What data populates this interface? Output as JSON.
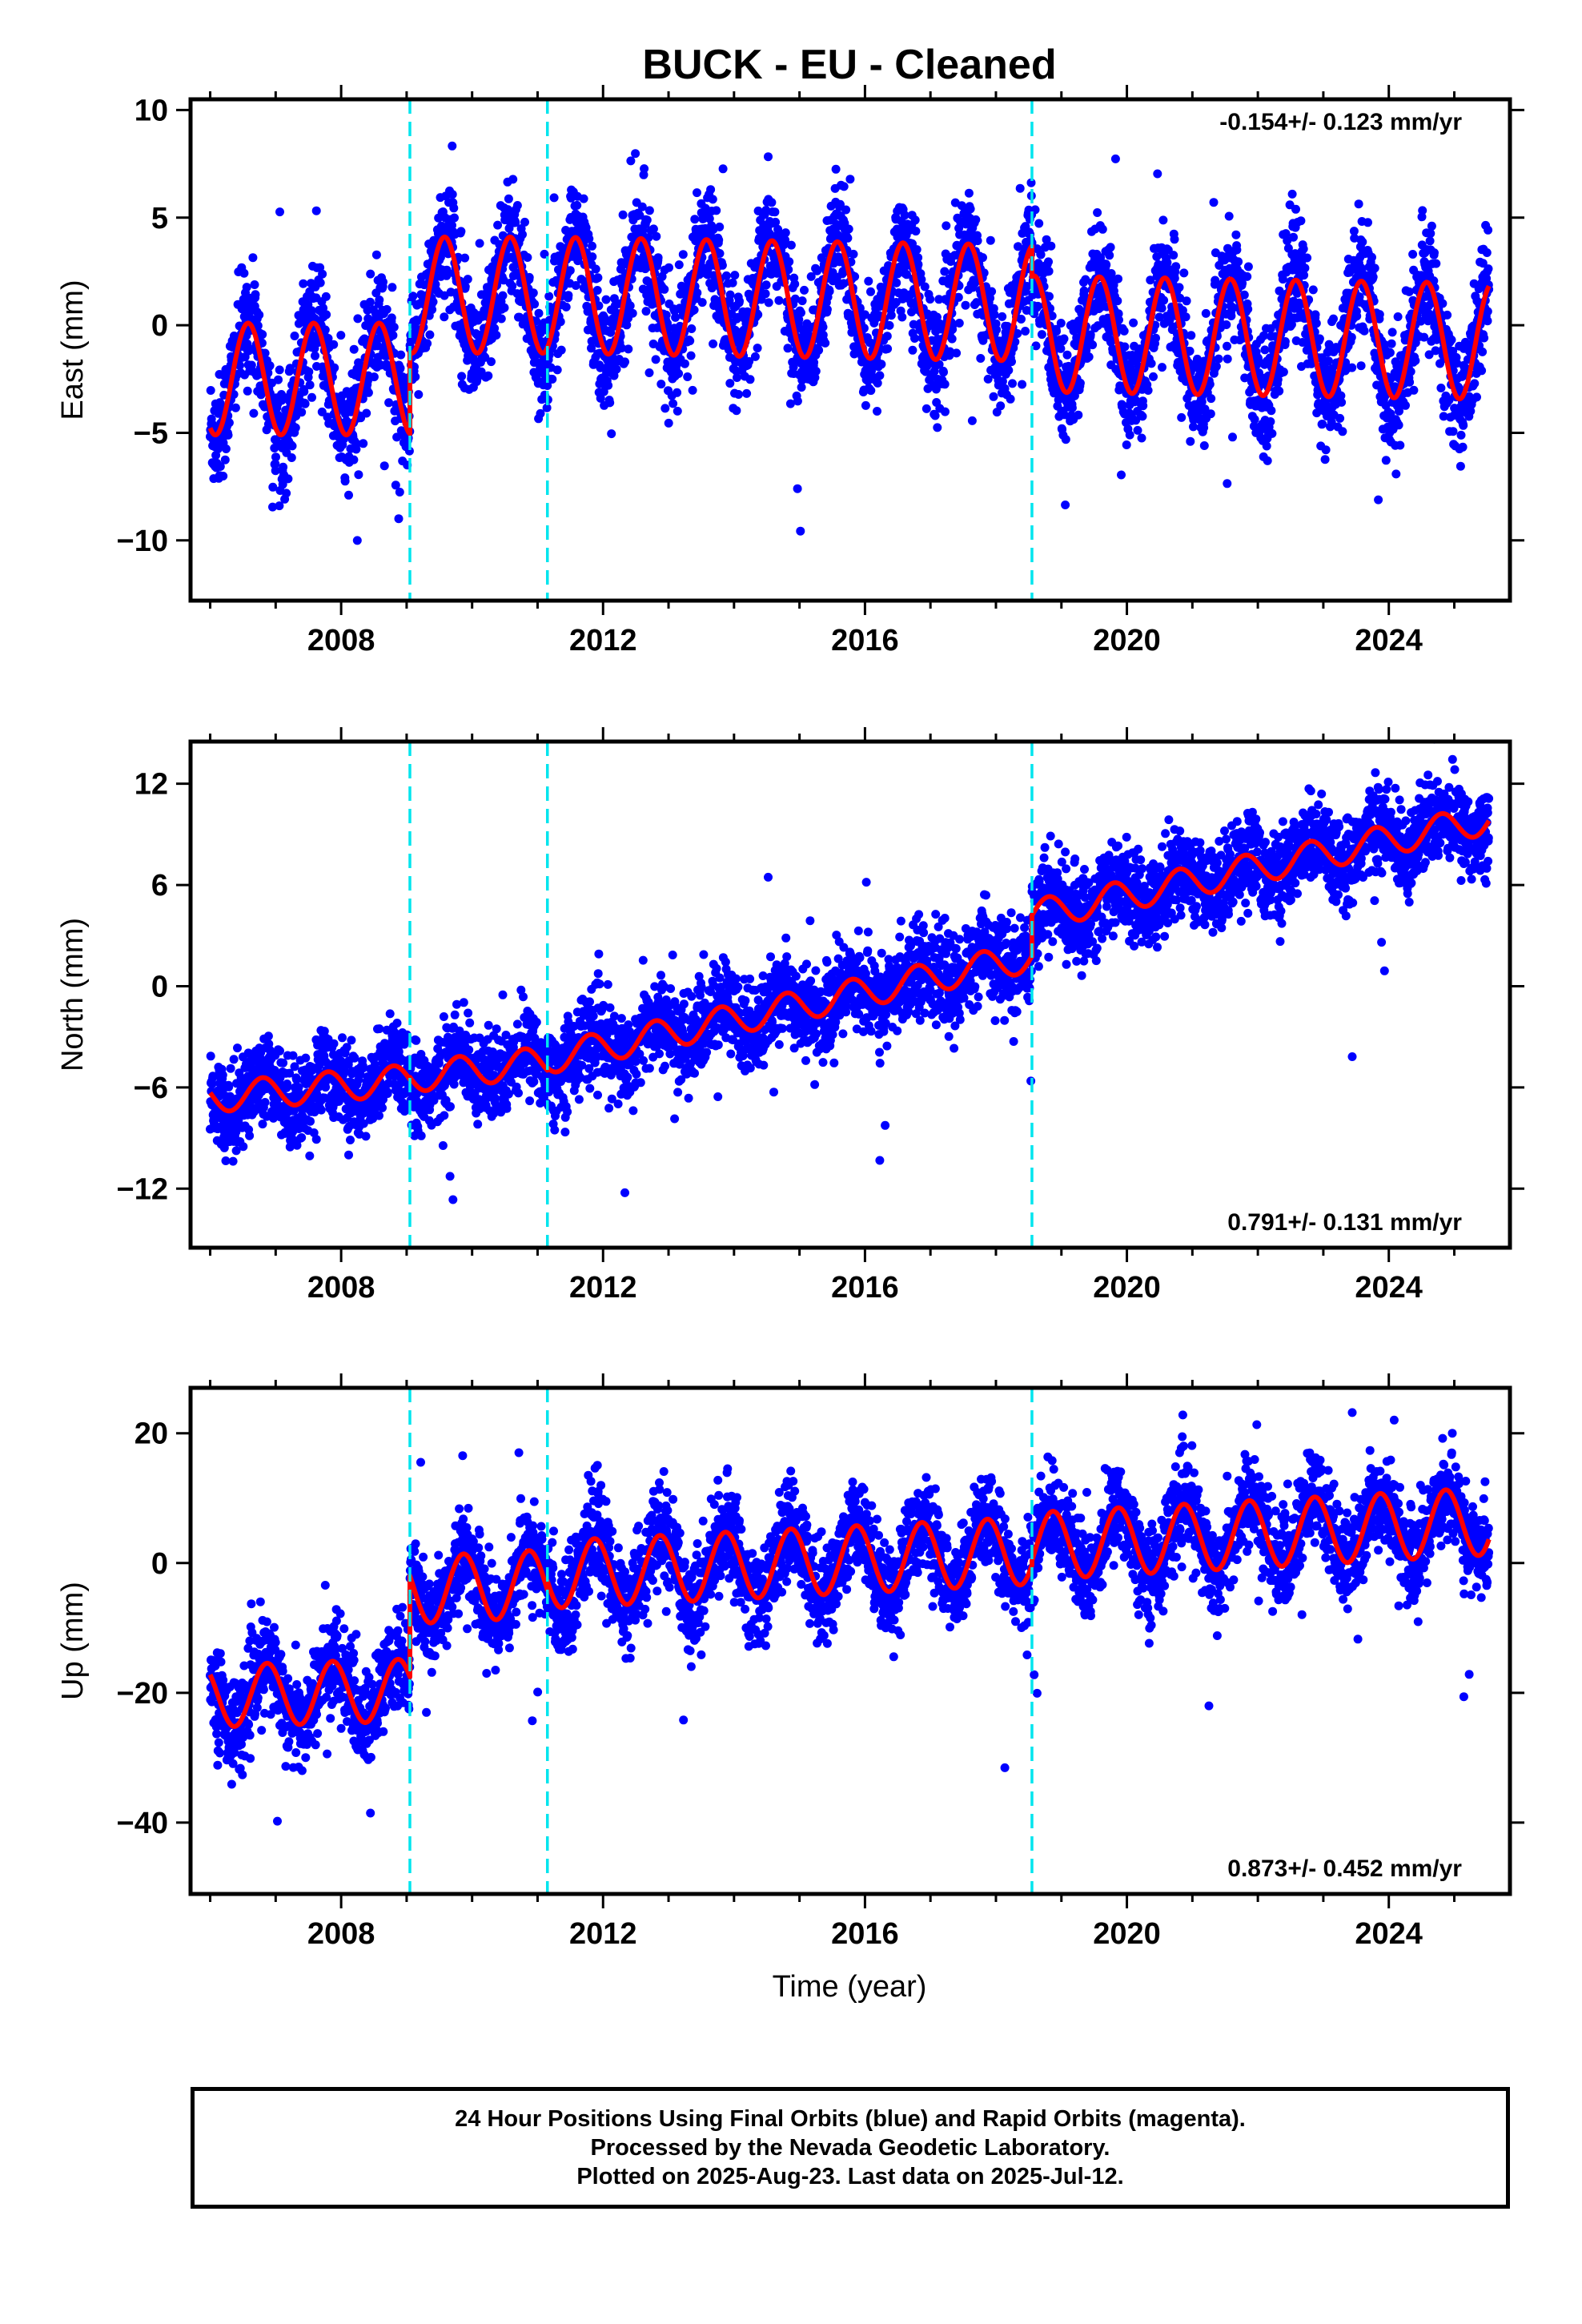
{
  "title": "BUCK  - EU - Cleaned",
  "xlabel": "Time (year)",
  "colors": {
    "points": "#0000ff",
    "model": "#ff0000",
    "breaks": "#00e5ee",
    "frame": "#000000"
  },
  "chart_data": [
    {
      "type": "scatter",
      "panel": "east",
      "ylabel": "East (mm)",
      "rate_text": "-0.154+/- 0.123 mm/yr",
      "rate_position": "top-right",
      "xlim": [
        2005.7,
        2025.85
      ],
      "ylim": [
        -12.8,
        10.5
      ],
      "yticks": [
        -10,
        -5,
        0,
        5,
        10
      ],
      "yticklabels": [
        "−10",
        "−5",
        "0",
        "5",
        "10"
      ],
      "xticks": [
        2008,
        2012,
        2016,
        2020,
        2024
      ],
      "xticklabels": [
        "2008",
        "2012",
        "2016",
        "2020",
        "2024"
      ],
      "break_lines": [
        2009.05,
        2011.15,
        2018.55
      ],
      "x_range": [
        2006.0,
        2025.53
      ],
      "model": {
        "segments": [
          {
            "start": 2006.0,
            "end": 2009.05,
            "offset": -2.5,
            "trend": 0,
            "amplitude": 2.6,
            "phase": 0.33
          },
          {
            "start": 2009.05,
            "end": 2011.15,
            "offset": 1.4,
            "trend": 0,
            "amplitude": 2.7,
            "phase": 0.33
          },
          {
            "start": 2011.15,
            "end": 2018.55,
            "offset": 1.4,
            "trend": -0.05,
            "amplitude": 2.7,
            "phase": 0.33
          },
          {
            "start": 2018.55,
            "end": 2025.53,
            "offset": -0.4,
            "trend": -0.05,
            "amplitude": 2.7,
            "phase": 0.33
          }
        ],
        "noise_sd": 1.3
      }
    },
    {
      "type": "scatter",
      "panel": "north",
      "ylabel": "North (mm)",
      "rate_text": "0.791+/- 0.131 mm/yr",
      "rate_position": "bottom-right",
      "xlim": [
        2005.7,
        2025.85
      ],
      "ylim": [
        -15.5,
        14.5
      ],
      "yticks": [
        -12,
        -6,
        0,
        6,
        12
      ],
      "yticklabels": [
        "−12",
        "−6",
        "0",
        "6",
        "12"
      ],
      "xticks": [
        2008,
        2012,
        2016,
        2020,
        2024
      ],
      "xticklabels": [
        "2008",
        "2012",
        "2016",
        "2020",
        "2024"
      ],
      "break_lines": [
        2009.05,
        2011.15,
        2018.55
      ],
      "x_range": [
        2006.0,
        2025.53
      ],
      "model": {
        "segments": [
          {
            "start": 2006.0,
            "end": 2009.05,
            "offset": -6.6,
            "trend": 0.35,
            "amplitude": 0.9,
            "phase": 0.55
          },
          {
            "start": 2009.05,
            "end": 2011.15,
            "offset": -5.4,
            "trend": 0.45,
            "amplitude": 0.9,
            "phase": 0.55
          },
          {
            "start": 2011.15,
            "end": 2018.55,
            "offset": -4.3,
            "trend": 0.82,
            "amplitude": 0.9,
            "phase": 0.55
          },
          {
            "start": 2018.55,
            "end": 2025.53,
            "offset": 4.2,
            "trend": 0.82,
            "amplitude": 0.9,
            "phase": 0.55
          }
        ],
        "noise_sd": 1.3
      }
    },
    {
      "type": "scatter",
      "panel": "up",
      "ylabel": "Up (mm)",
      "rate_text": "0.873+/- 0.452 mm/yr",
      "rate_position": "bottom-right",
      "xlim": [
        2005.7,
        2025.85
      ],
      "ylim": [
        -51,
        27
      ],
      "yticks": [
        -40,
        -20,
        0,
        20
      ],
      "yticklabels": [
        "−40",
        "−20",
        "0",
        "20"
      ],
      "xticks": [
        2008,
        2012,
        2016,
        2020,
        2024
      ],
      "xticklabels": [
        "2008",
        "2012",
        "2016",
        "2020",
        "2024"
      ],
      "break_lines": [
        2009.05,
        2011.15,
        2018.55
      ],
      "x_range": [
        2006.0,
        2025.53
      ],
      "model": {
        "segments": [
          {
            "start": 2006.0,
            "end": 2009.05,
            "offset": -20.5,
            "trend": 0.3,
            "amplitude": 4.8,
            "phase": 0.62
          },
          {
            "start": 2009.05,
            "end": 2011.15,
            "offset": -4.2,
            "trend": 0.5,
            "amplitude": 5.2,
            "phase": 0.62
          },
          {
            "start": 2011.15,
            "end": 2018.55,
            "offset": -1.8,
            "trend": 0.5,
            "amplitude": 5.2,
            "phase": 0.62
          },
          {
            "start": 2018.55,
            "end": 2025.53,
            "offset": 2.6,
            "trend": 0.55,
            "amplitude": 5.2,
            "phase": 0.62
          }
        ],
        "noise_sd": 3.6
      }
    }
  ],
  "footer": {
    "line1": "24 Hour Positions Using Final Orbits (blue) and Rapid Orbits (magenta).",
    "line2": "Processed by the Nevada Geodetic Laboratory.",
    "line3": "Plotted on 2025-Aug-23. Last data on 2025-Jul-12."
  }
}
